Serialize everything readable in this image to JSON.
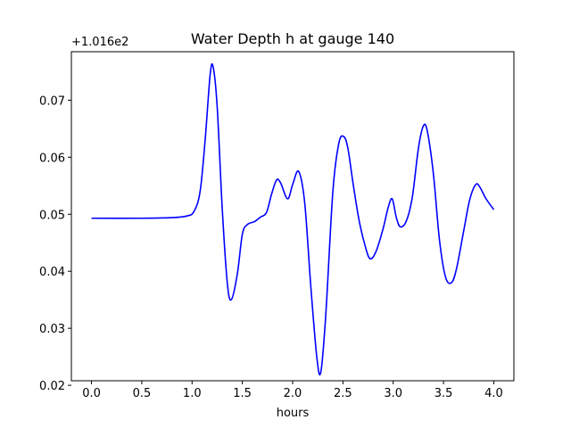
{
  "chart_data": {
    "type": "line",
    "title": "Water Depth h at gauge 140",
    "xlabel": "hours",
    "ylabel": "",
    "y_offset_label": "+1.016e2",
    "xlim": [
      -0.2,
      4.2
    ],
    "ylim": [
      0.0208,
      0.0785
    ],
    "x_ticks": [
      0.0,
      0.5,
      1.0,
      1.5,
      2.0,
      2.5,
      3.0,
      3.5,
      4.0
    ],
    "x_tick_labels": [
      "0.0",
      "0.5",
      "1.0",
      "1.5",
      "2.0",
      "2.5",
      "3.0",
      "3.5",
      "4.0"
    ],
    "y_ticks": [
      0.02,
      0.03,
      0.04,
      0.05,
      0.06,
      0.07
    ],
    "y_tick_labels": [
      "0.02",
      "0.03",
      "0.04",
      "0.05",
      "0.06",
      "0.07"
    ],
    "grid": false,
    "series": [
      {
        "color": "#0000ff",
        "x": [
          0.0,
          0.5,
          0.8,
          0.95,
          1.02,
          1.08,
          1.13,
          1.18,
          1.21,
          1.25,
          1.3,
          1.35,
          1.39,
          1.45,
          1.5,
          1.55,
          1.62,
          1.68,
          1.74,
          1.79,
          1.84,
          1.88,
          1.95,
          2.0,
          2.06,
          2.12,
          2.18,
          2.24,
          2.28,
          2.33,
          2.4,
          2.46,
          2.51,
          2.55,
          2.6,
          2.66,
          2.72,
          2.77,
          2.83,
          2.9,
          2.95,
          2.99,
          3.03,
          3.07,
          3.13,
          3.19,
          3.25,
          3.3,
          3.34,
          3.4,
          3.46,
          3.52,
          3.58,
          3.63,
          3.7,
          3.76,
          3.82,
          3.86,
          3.92,
          4.0
        ],
        "y": [
          0.0493,
          0.0493,
          0.0494,
          0.0497,
          0.0505,
          0.054,
          0.063,
          0.0745,
          0.0758,
          0.0688,
          0.051,
          0.038,
          0.035,
          0.0395,
          0.0465,
          0.0482,
          0.0487,
          0.0495,
          0.0503,
          0.0535,
          0.056,
          0.0555,
          0.0527,
          0.0552,
          0.0575,
          0.052,
          0.0375,
          0.025,
          0.0223,
          0.0325,
          0.054,
          0.0625,
          0.0636,
          0.0615,
          0.0555,
          0.049,
          0.0445,
          0.0422,
          0.0435,
          0.0475,
          0.0512,
          0.0527,
          0.0495,
          0.0478,
          0.0488,
          0.053,
          0.0615,
          0.0655,
          0.0645,
          0.057,
          0.0455,
          0.039,
          0.038,
          0.0405,
          0.047,
          0.0525,
          0.0552,
          0.0548,
          0.0528,
          0.0508
        ]
      }
    ]
  }
}
